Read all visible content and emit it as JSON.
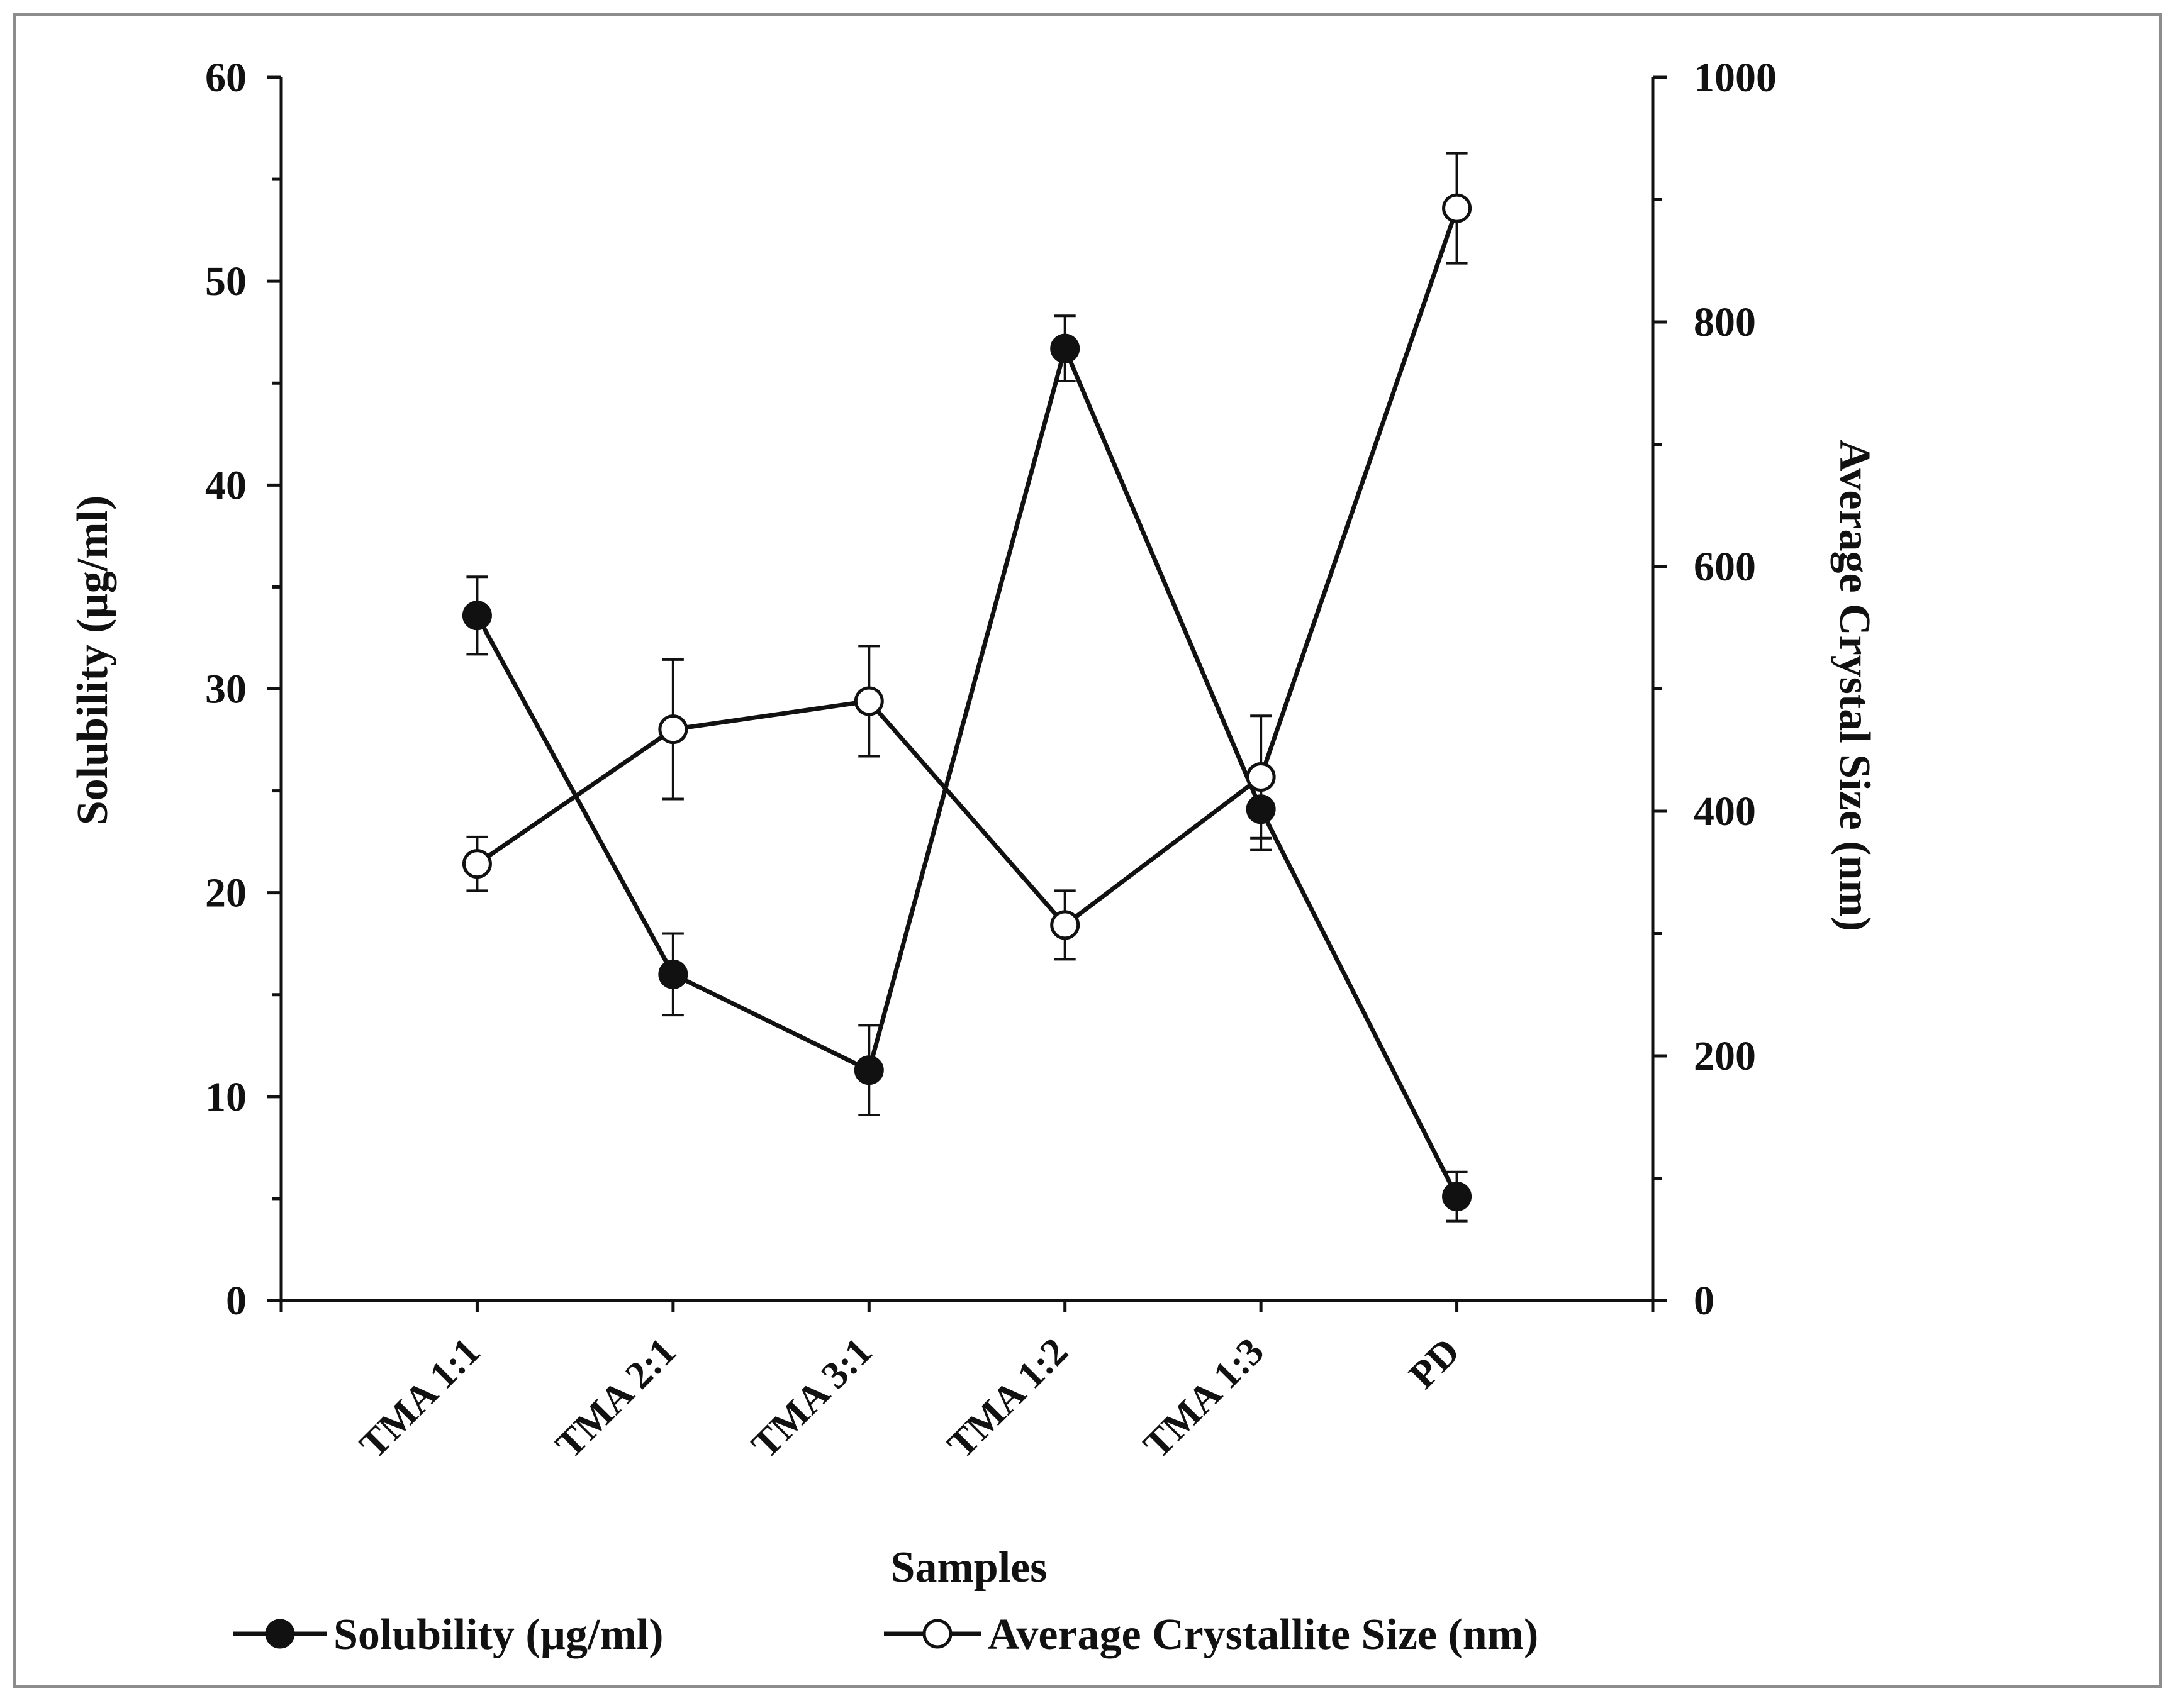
{
  "chart_data": {
    "type": "line",
    "title": "",
    "xlabel": "Samples",
    "ylabel": "Solubility  (µg/ml)",
    "y2label": "Average Crystal Size  (nm)",
    "categories": [
      "TMA 1:1",
      "TMA 2:1",
      "TMA 3:1",
      "TMA 1:2",
      "TMA 1:3",
      "PD"
    ],
    "ylim": [
      0,
      60
    ],
    "y2lim": [
      0,
      1000
    ],
    "yticks": [
      0,
      10,
      20,
      30,
      40,
      50,
      60
    ],
    "y2ticks": [
      0,
      200,
      400,
      600,
      800,
      1000
    ],
    "grid": false,
    "legend_position": "bottom",
    "series": [
      {
        "name": "Solubility (µg/ml)",
        "axis": "left",
        "marker": "filled-circle",
        "values": [
          33.6,
          16.0,
          11.3,
          46.7,
          24.1,
          5.1
        ],
        "errors": [
          1.9,
          2.0,
          2.2,
          1.6,
          2.0,
          1.2
        ]
      },
      {
        "name": "Average Crystallite Size (nm)",
        "axis": "right",
        "marker": "open-circle",
        "values": [
          357,
          467,
          490,
          307,
          428,
          893
        ],
        "errors": [
          22,
          57,
          45,
          28,
          50,
          45
        ]
      }
    ]
  }
}
